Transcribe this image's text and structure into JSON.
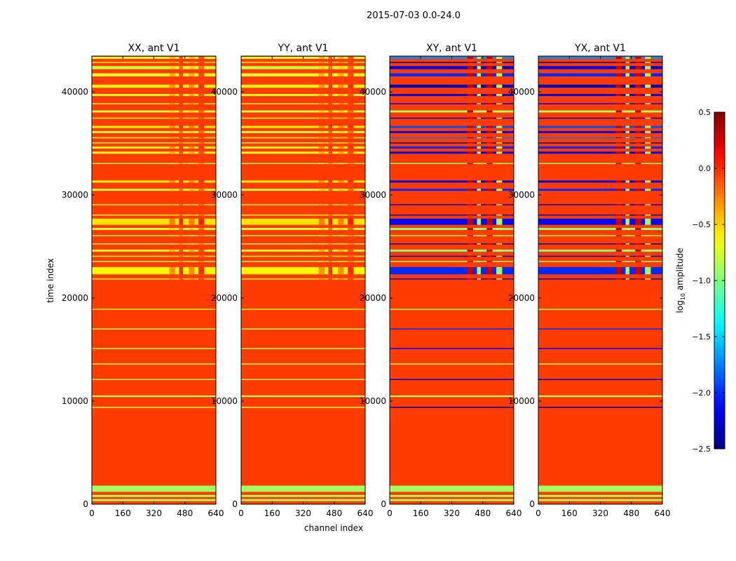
{
  "chart_data": {
    "type": "heatmap",
    "title": "2015-07-03 0.0-24.0",
    "xlabel": "channel index",
    "ylabel": "time index",
    "xlim": [
      0,
      640
    ],
    "ylim": [
      0,
      43500
    ],
    "xticks": [
      "0",
      "160",
      "320",
      "480",
      "640"
    ],
    "xtick_values": [
      0,
      160,
      320,
      480,
      640
    ],
    "yticks": [
      "0",
      "10000",
      "20000",
      "30000",
      "40000"
    ],
    "ytick_values": [
      0,
      10000,
      20000,
      30000,
      40000
    ],
    "colorbar": {
      "label": "log10 amplitude",
      "label_main": "log",
      "label_sub": "10",
      "label_rest": " amplitude",
      "range": [
        -2.5,
        0.5
      ],
      "ticks": [
        "0.5",
        "0.0",
        "−0.5",
        "−1.0",
        "−1.5",
        "−2.0",
        "−2.5"
      ],
      "tick_values": [
        0.5,
        0.0,
        -0.5,
        -1.0,
        -1.5,
        -2.0,
        -2.5
      ],
      "colormap": "jet"
    },
    "background_value": -0.05,
    "panels": [
      {
        "title": "XX, ant V1",
        "kind": "parallel"
      },
      {
        "title": "YY, ant V1",
        "kind": "parallel"
      },
      {
        "title": "XY, ant V1",
        "kind": "cross"
      },
      {
        "title": "YX, ant V1",
        "kind": "cross"
      }
    ],
    "bands_parallel": [
      [
        300,
        500,
        -0.9
      ],
      [
        700,
        900,
        -0.9
      ],
      [
        1200,
        1800,
        -0.9
      ],
      [
        9350,
        9450,
        -0.7
      ],
      [
        10400,
        10550,
        -0.9
      ],
      [
        12050,
        12150,
        -0.8
      ],
      [
        13550,
        13650,
        -0.9
      ],
      [
        15050,
        15150,
        -0.9
      ],
      [
        16950,
        17050,
        -0.9
      ],
      [
        18850,
        18950,
        -0.6
      ],
      [
        21800,
        21900,
        -0.7
      ],
      [
        22300,
        23000,
        -0.6
      ],
      [
        23500,
        23600,
        -0.9
      ],
      [
        24000,
        24100,
        -0.8
      ],
      [
        24500,
        24700,
        -0.7
      ],
      [
        25200,
        25300,
        -0.9
      ],
      [
        26000,
        26100,
        -0.9
      ],
      [
        26600,
        26800,
        -0.8
      ],
      [
        27100,
        27700,
        -0.55
      ],
      [
        28000,
        28100,
        -0.8
      ],
      [
        29000,
        29100,
        -0.7
      ],
      [
        30400,
        30600,
        -0.8
      ],
      [
        31200,
        31400,
        -0.6
      ],
      [
        33000,
        33100,
        -0.9
      ],
      [
        34000,
        34200,
        -0.7
      ],
      [
        34500,
        34700,
        -0.6
      ],
      [
        35000,
        35100,
        -0.9
      ],
      [
        35500,
        35600,
        -0.7
      ],
      [
        36000,
        36200,
        -0.8
      ],
      [
        36500,
        36700,
        -0.6
      ],
      [
        37400,
        37500,
        -0.7
      ],
      [
        38000,
        38200,
        -0.8
      ],
      [
        38800,
        38900,
        -0.6
      ],
      [
        39600,
        39800,
        -0.7
      ],
      [
        40400,
        40700,
        -0.6
      ],
      [
        41500,
        41800,
        -0.7
      ],
      [
        42200,
        42500,
        -0.8
      ],
      [
        42800,
        42900,
        -0.6
      ],
      [
        43200,
        43400,
        -0.7
      ]
    ],
    "bands_cross": [
      [
        300,
        500,
        -0.9
      ],
      [
        700,
        900,
        -0.9
      ],
      [
        1200,
        1800,
        -0.9
      ],
      [
        9350,
        9450,
        -2.4
      ],
      [
        10400,
        10550,
        -0.9
      ],
      [
        12050,
        12150,
        -2.3
      ],
      [
        13550,
        13650,
        -0.9
      ],
      [
        15050,
        15150,
        -2.1
      ],
      [
        16950,
        17050,
        -2.0
      ],
      [
        18850,
        18950,
        -0.9
      ],
      [
        21800,
        21900,
        -2.3
      ],
      [
        22300,
        23000,
        -2.0
      ],
      [
        23500,
        23600,
        -1.0
      ],
      [
        24000,
        24100,
        -2.3
      ],
      [
        24500,
        24700,
        -1.0
      ],
      [
        25200,
        25300,
        -2.4
      ],
      [
        26000,
        26100,
        -0.9
      ],
      [
        26600,
        26800,
        -1.0
      ],
      [
        27100,
        27700,
        -2.1
      ],
      [
        28000,
        28100,
        -2.3
      ],
      [
        29000,
        29100,
        -2.2
      ],
      [
        30400,
        30600,
        -2.0
      ],
      [
        31200,
        31400,
        -2.2
      ],
      [
        33000,
        33100,
        -1.0
      ],
      [
        34000,
        34200,
        -2.2
      ],
      [
        34500,
        34700,
        -2.0
      ],
      [
        35000,
        35100,
        -2.4
      ],
      [
        35500,
        35600,
        -1.8
      ],
      [
        36000,
        36200,
        -2.2
      ],
      [
        36500,
        36700,
        -1.9
      ],
      [
        37400,
        37500,
        -2.3
      ],
      [
        38000,
        38200,
        -0.9
      ],
      [
        38800,
        38900,
        -2.1
      ],
      [
        39600,
        39800,
        -2.2
      ],
      [
        40400,
        40700,
        -2.3
      ],
      [
        41500,
        41800,
        -2.0
      ],
      [
        42200,
        42500,
        -2.2
      ],
      [
        42800,
        42900,
        -2.4
      ],
      [
        43200,
        43400,
        -1.7
      ]
    ],
    "rfi_channels": [
      [
        400,
        430
      ],
      [
        450,
        470
      ],
      [
        500,
        530
      ],
      [
        550,
        580
      ]
    ]
  }
}
